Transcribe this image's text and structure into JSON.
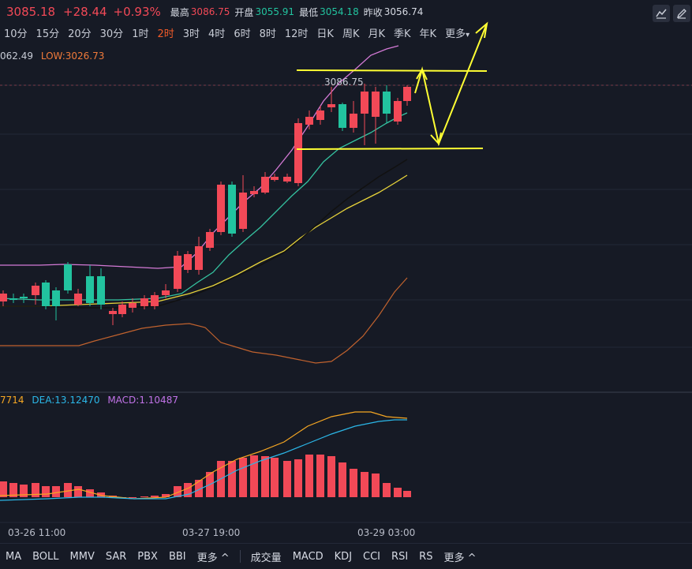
{
  "header": {
    "price": "3085.18",
    "change": "+28.44",
    "change_pct": "+0.93%",
    "high_label": "最高",
    "high_value": "3086.75",
    "open_label": "开盘",
    "open_value": "3055.91",
    "low_label": "最低",
    "low_value": "3054.18",
    "prev_label": "昨收",
    "prev_value": "3056.74"
  },
  "timeframes": [
    "10分",
    "15分",
    "20分",
    "30分",
    "1时",
    "2时",
    "3时",
    "4时",
    "6时",
    "8时",
    "12时",
    "日K",
    "周K",
    "月K",
    "季K",
    "年K",
    "更多"
  ],
  "active_timeframe": "2时",
  "main_chart": {
    "hl_left": "062.49",
    "low_text": "LOW:3026.73",
    "high_marker": "3086.75"
  },
  "macd": {
    "dif_text": "7714",
    "dea_text": "DEA:13.12470",
    "macd_text": "MACD:1.10487"
  },
  "dates": [
    "03-26 11:00",
    "03-27 19:00",
    "03-29 03:00"
  ],
  "bottom_indicators_left": [
    "MA",
    "BOLL",
    "MMV",
    "SAR",
    "PBX",
    "BBI",
    "更多"
  ],
  "bottom_indicators_right": [
    "成交量",
    "MACD",
    "KDJ",
    "CCI",
    "RSI",
    "RS",
    "更多"
  ],
  "colors": {
    "up": "#f24957",
    "down": "#22c39f",
    "bg": "#161a25",
    "annotation": "#ffff33"
  },
  "icons": [
    "line-tool-icon",
    "pencil-icon",
    "chevron-down-icon",
    "chevron-up-icon"
  ]
}
